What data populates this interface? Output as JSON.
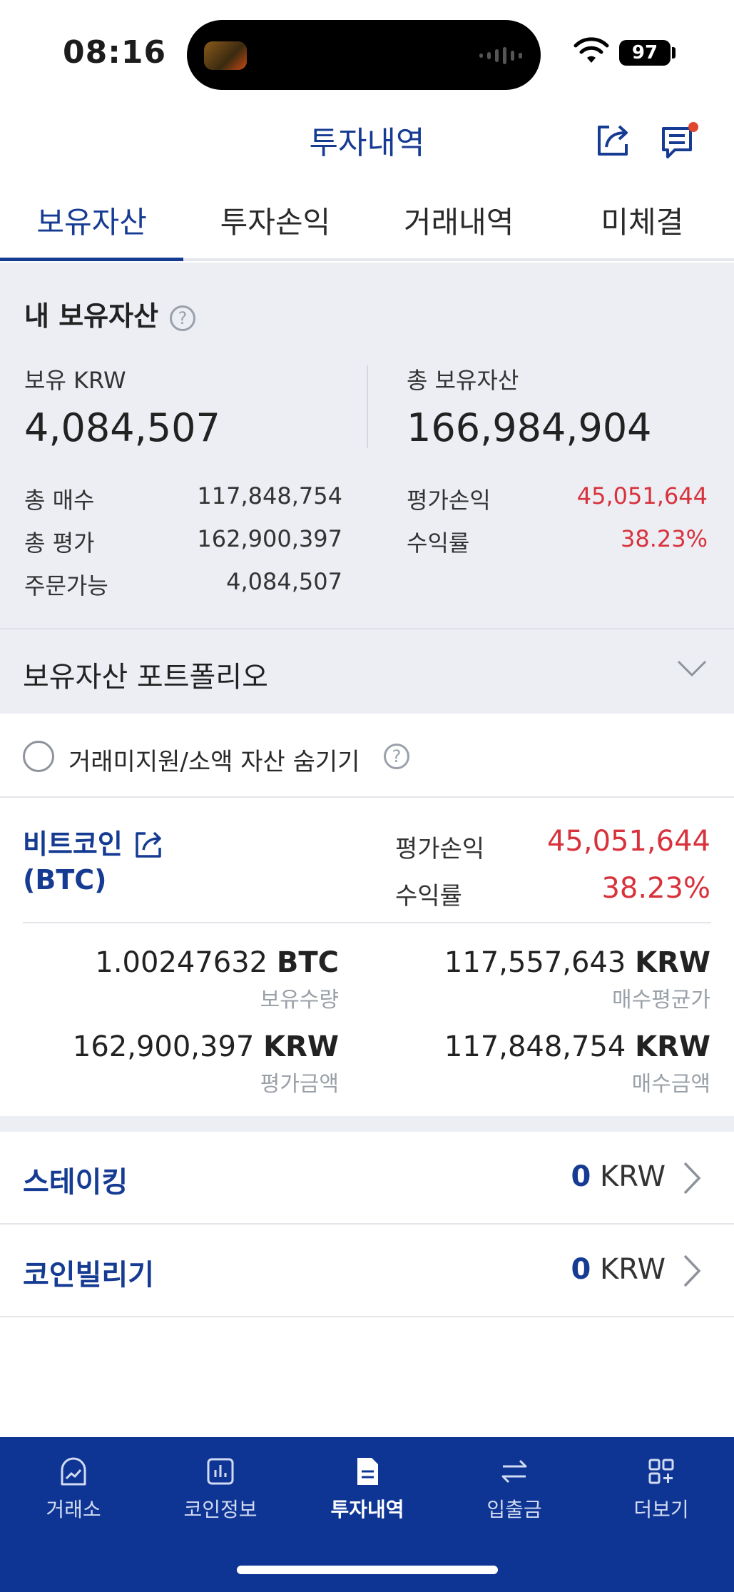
{
  "status_bar": {
    "time": "08:16",
    "battery": "97"
  },
  "header": {
    "title": "투자내역"
  },
  "tabs": [
    {
      "label": "보유자산",
      "active": true
    },
    {
      "label": "투자손익",
      "active": false
    },
    {
      "label": "거래내역",
      "active": false
    },
    {
      "label": "미체결",
      "active": false
    }
  ],
  "summary": {
    "title": "내 보유자산",
    "krw_label": "보유 KRW",
    "krw_value": "4,084,507",
    "total_label": "총 보유자산",
    "total_value": "166,984,904",
    "rows_left": [
      {
        "label": "총 매수",
        "value": "117,848,754"
      },
      {
        "label": "총 평가",
        "value": "162,900,397"
      },
      {
        "label": "주문가능",
        "value": "4,084,507"
      }
    ],
    "rows_right": [
      {
        "label": "평가손익",
        "value": "45,051,644"
      },
      {
        "label": "수익률",
        "value": "38.23%"
      }
    ]
  },
  "portfolio": {
    "title": "보유자산 포트폴리오"
  },
  "hide_option": {
    "label": "거래미지원/소액 자산 숨기기"
  },
  "coin": {
    "name": "비트코인",
    "ticker": "(BTC)",
    "pnl_label": "평가손익",
    "pnl_value": "45,051,644",
    "rate_label": "수익률",
    "rate_value": "38.23%",
    "holding_qty": "1.00247632",
    "holding_unit": "BTC",
    "holding_label": "보유수량",
    "avg_price": "117,557,643",
    "avg_price_unit": "KRW",
    "avg_price_label": "매수평균가",
    "eval_amount": "162,900,397",
    "eval_amount_unit": "KRW",
    "eval_amount_label": "평가금액",
    "buy_amount": "117,848,754",
    "buy_amount_unit": "KRW",
    "buy_amount_label": "매수금액"
  },
  "staking": {
    "label": "스테이킹",
    "value": "0",
    "unit": "KRW"
  },
  "lending": {
    "label": "코인빌리기",
    "value": "0",
    "unit": "KRW"
  },
  "bottom_nav": [
    {
      "label": "거래소",
      "icon": "exchange-chart-icon",
      "active": false
    },
    {
      "label": "코인정보",
      "icon": "coin-info-icon",
      "active": false
    },
    {
      "label": "투자내역",
      "icon": "document-icon",
      "active": true
    },
    {
      "label": "입출금",
      "icon": "transfer-icon",
      "active": false
    },
    {
      "label": "더보기",
      "icon": "more-grid-icon",
      "active": false
    }
  ],
  "colors": {
    "brand": "#163b93",
    "nav_bg": "#0f3594",
    "profit": "#d8323c",
    "section_bg": "#eceef4"
  }
}
